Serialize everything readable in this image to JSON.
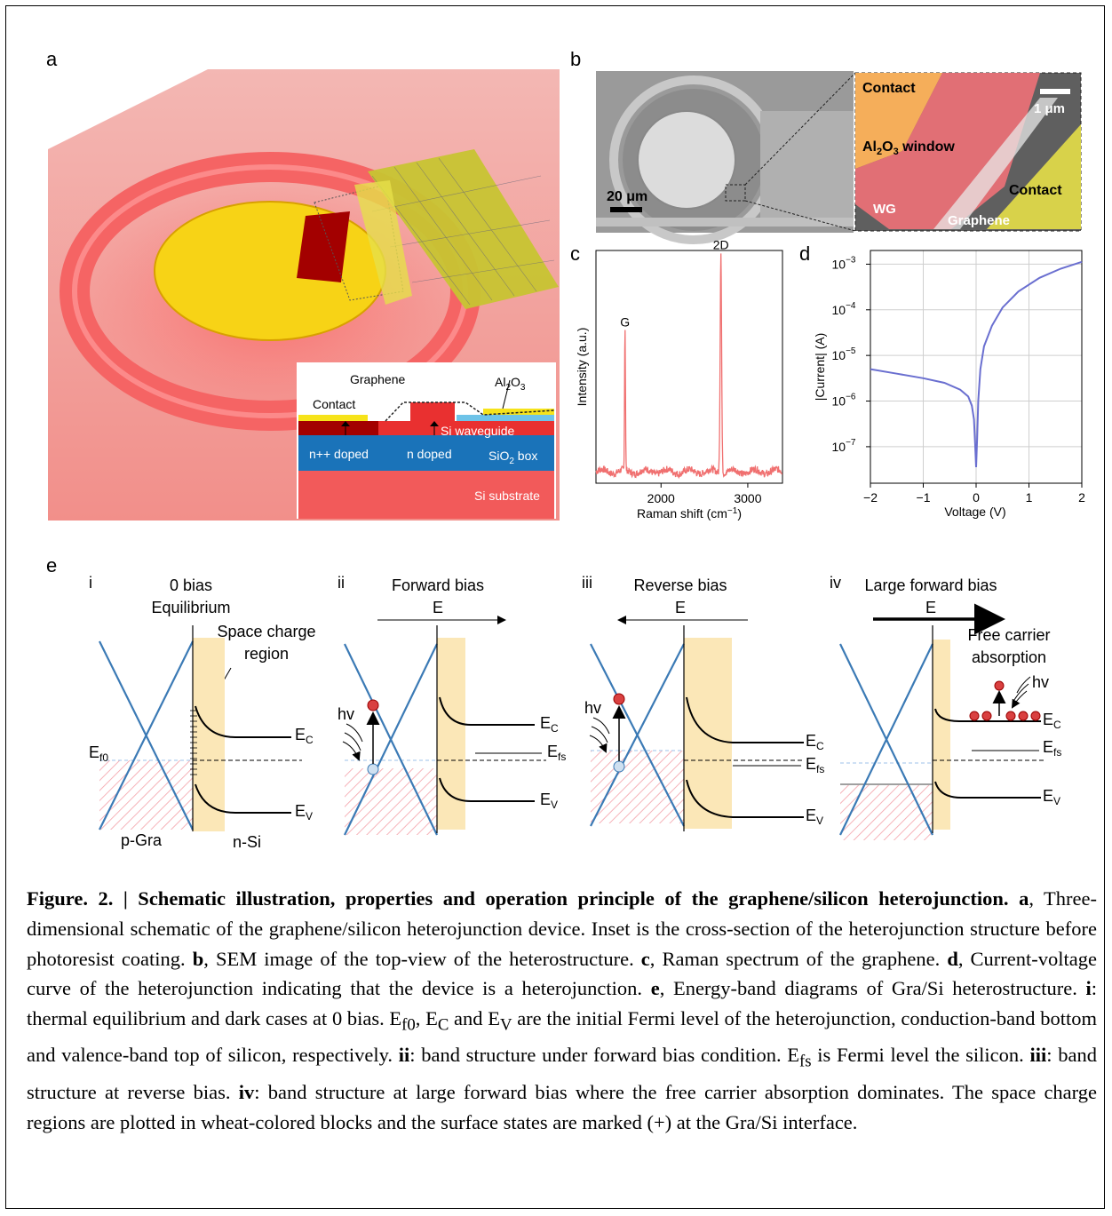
{
  "panels": {
    "a": "a",
    "b": "b",
    "c": "c",
    "d": "d",
    "e": "e"
  },
  "panel_a": {
    "inset": {
      "graphene": "Graphene",
      "al2o3": "Al",
      "al2o3_sub": "2",
      "al2o3_end": "O",
      "al2o3_sub2": "3",
      "contact": "Contact",
      "si_waveguide": "Si waveguide",
      "npp_doped": "n++ doped",
      "n_doped": "n doped",
      "sio2": "SiO",
      "sio2_sub": "2",
      "sio2_end": " box",
      "si_substrate": "Si substrate"
    }
  },
  "panel_b": {
    "scale_left": "20 μm",
    "contact_top": "Contact",
    "scale_right": "1 μm",
    "window": "Al",
    "window_sub": "2",
    "window_mid": "O",
    "window_sub2": "3",
    "window_end": " window",
    "contact_right": "Contact",
    "wg": "WG",
    "graphene": "Graphene"
  },
  "chart_data": [
    {
      "type": "line",
      "panel": "c",
      "xlabel": "Raman shift (cm",
      "xlabel_sup": "−1",
      "xlabel_end": ")",
      "ylabel": "Intensity (a.u.)",
      "xlim": [
        1250,
        3400
      ],
      "xticks": [
        2000,
        3000
      ],
      "xtick_labels": [
        "2000",
        "3000"
      ],
      "peaks": [
        {
          "label": "G",
          "x": 1585,
          "height": 0.62
        },
        {
          "label": "2D",
          "x": 2690,
          "height": 0.96
        }
      ],
      "baseline": 0.05
    },
    {
      "type": "line",
      "panel": "d",
      "xlabel": "Voltage (V)",
      "ylabel": "|Current| (A)",
      "xlim": [
        -2,
        2
      ],
      "ylim_log10": [
        -7.8,
        -2.7
      ],
      "xticks": [
        -2,
        -1,
        0,
        1,
        2
      ],
      "xtick_labels": [
        "−2",
        "−1",
        "0",
        "1",
        "2"
      ],
      "yticks_exp": [
        -7,
        -6,
        -5,
        -4,
        -3
      ],
      "ytick_base": "10",
      "ytick_exps": [
        "−7",
        "−6",
        "−5",
        "−4",
        "−3"
      ],
      "grid": true,
      "series": [
        {
          "x": [
            -2,
            -1.5,
            -1,
            -0.6,
            -0.3,
            -0.15,
            -0.08,
            -0.04,
            -0.02,
            0,
            0.02,
            0.04,
            0.08,
            0.15,
            0.3,
            0.5,
            0.8,
            1.2,
            1.6,
            2
          ],
          "y_log10": [
            -5.3,
            -5.4,
            -5.5,
            -5.6,
            -5.75,
            -5.9,
            -6.1,
            -6.4,
            -6.9,
            -7.45,
            -6.8,
            -6.0,
            -5.3,
            -4.8,
            -4.35,
            -3.95,
            -3.6,
            -3.3,
            -3.1,
            -2.95
          ],
          "color": "#6a6fd0"
        }
      ]
    }
  ],
  "panel_e": {
    "i": {
      "num": "i",
      "t1": "0 bias",
      "t2": "Equilibrium",
      "scr1": "Space charge",
      "scr2": "region",
      "ef": "E",
      "ef_sub": "f0",
      "ec": "E",
      "ec_sub": "C",
      "ev": "E",
      "ev_sub": "V",
      "pgra": "p-Gra",
      "nsi": "n-Si"
    },
    "ii": {
      "num": "ii",
      "t1": "Forward bias",
      "t2": "E",
      "hv": "hv",
      "ec": "E",
      "ec_sub": "C",
      "efs": "E",
      "efs_sub": "fs",
      "ev": "E",
      "ev_sub": "V"
    },
    "iii": {
      "num": "iii",
      "t1": "Reverse bias",
      "t2": "E",
      "hv": "hv",
      "ec": "E",
      "ec_sub": "C",
      "efs": "E",
      "efs_sub": "fs",
      "ev": "E",
      "ev_sub": "V"
    },
    "iv": {
      "num": "iv",
      "t1": "Large forward bias",
      "t2": "E",
      "fca1": "Free carrier",
      "fca2": "absorption",
      "hv": "hv",
      "ec": "E",
      "ec_sub": "C",
      "efs": "E",
      "efs_sub": "fs",
      "ev": "E",
      "ev_sub": "V"
    }
  },
  "caption": {
    "title": "Figure. 2. | Schematic illustration, properties and operation principle of the graphene/silicon heterojunction.",
    "a_label": "a",
    "a_text": ", Three-dimensional schematic of the graphene/silicon heterojunction device. Inset is the cross-section of the heterojunction structure before photoresist coating. ",
    "b_label": "b",
    "b_text": ", SEM image of the top-view of the heterostructure. ",
    "c_label": "c",
    "c_text": ", Raman spectrum of the graphene. ",
    "d_label": "d",
    "d_text": ", Current-voltage curve of the heterojunction indicating that the device is a heterojunction. ",
    "e_label": "e",
    "e_text": ", Energy-band diagrams of Gra/Si heterostructure. ",
    "i_label": "i",
    "i_text": ": thermal equilibrium and dark cases at 0 bias. E",
    "i_sub1": "f0",
    "i_text2": ", E",
    "i_sub2": "C",
    "i_text3": " and E",
    "i_sub3": "V",
    "i_text4": " are the initial Fermi level of the heterojunction, conduction-band bottom and valence-band top of silicon, respectively. ",
    "ii_label": "ii",
    "ii_text": ": band structure under forward bias condition. E",
    "ii_sub": "fs",
    "ii_text2": " is Fermi level the silicon. ",
    "iii_label": "iii",
    "iii_text": ": band structure at reverse bias. ",
    "iv_label": "iv",
    "iv_text": ": band structure at large forward bias where the free carrier absorption dominates. The space charge regions are plotted in wheat-colored blocks and the surface states are marked (+) at the Gra/Si interface."
  }
}
